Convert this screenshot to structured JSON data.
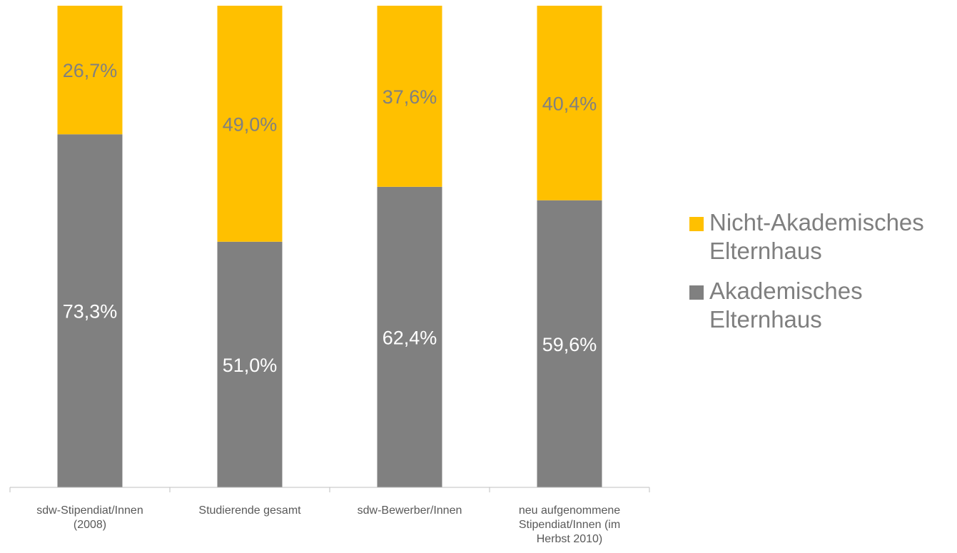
{
  "chart_data": {
    "type": "bar",
    "stacked": true,
    "percent_stacked": true,
    "categories": [
      "sdw-Stipendiat/Innen\n(2008)",
      "Studierende gesamt",
      "sdw-Bewerber/Innen",
      "neu aufgenommene\nStipendiat/Innen (im\nHerbst 2010)"
    ],
    "series": [
      {
        "name": "Akademisches Elternhaus",
        "values": [
          73.3,
          51.0,
          62.4,
          59.6
        ],
        "labels": [
          "73,3%",
          "51,0%",
          "62,4%",
          "59,6%"
        ],
        "color": "#808080"
      },
      {
        "name": "Nicht-Akademisches Elternhaus",
        "values": [
          26.7,
          49.0,
          37.6,
          40.4
        ],
        "labels": [
          "26,7%",
          "49,0%",
          "37,6%",
          "40,4%"
        ],
        "color": "#ffc000"
      }
    ],
    "ylim": [
      0,
      100
    ],
    "grid": false,
    "legend_position": "right"
  },
  "legend": {
    "items": [
      {
        "label": "Nicht-Akademisches\nElternhaus",
        "color": "#ffc000"
      },
      {
        "label": "Akademisches\nElternhaus",
        "color": "#808080"
      }
    ]
  }
}
